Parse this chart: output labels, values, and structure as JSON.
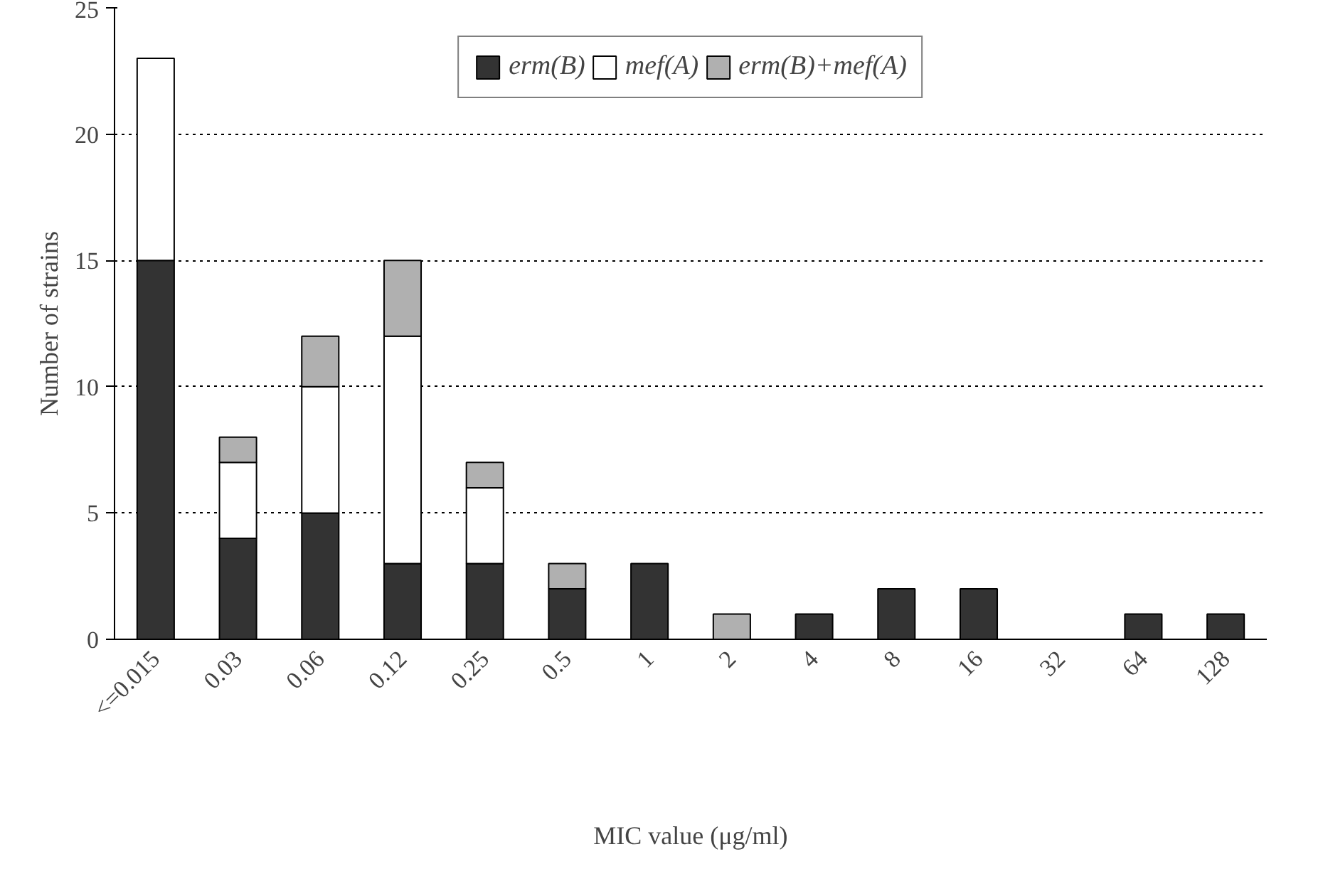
{
  "chart_data": {
    "type": "bar",
    "stacked": true,
    "xlabel": "MIC value (μg/ml)",
    "ylabel": "Number of strains",
    "categories": [
      "<=0.015",
      "0.03",
      "0.06",
      "0.12",
      "0.25",
      "0.5",
      "1",
      "2",
      "4",
      "8",
      "16",
      "32",
      "64",
      "128"
    ],
    "series": [
      {
        "name": "erm(B)",
        "color": "#333333",
        "values": [
          15,
          4,
          5,
          3,
          3,
          2,
          3,
          0,
          1,
          2,
          2,
          0,
          1,
          1
        ]
      },
      {
        "name": "mef(A)",
        "color": "#ffffff",
        "values": [
          8,
          3,
          5,
          9,
          3,
          0,
          0,
          0,
          0,
          0,
          0,
          0,
          0,
          0
        ]
      },
      {
        "name": "erm(B)+mef(A)",
        "color": "#b0b0b0",
        "values": [
          0,
          1,
          2,
          3,
          1,
          1,
          0,
          1,
          0,
          0,
          0,
          0,
          0,
          0
        ]
      }
    ],
    "ylim": [
      0,
      25
    ],
    "yticks": [
      0,
      5,
      10,
      15,
      20,
      25
    ],
    "grid": "y",
    "legend": "top"
  }
}
